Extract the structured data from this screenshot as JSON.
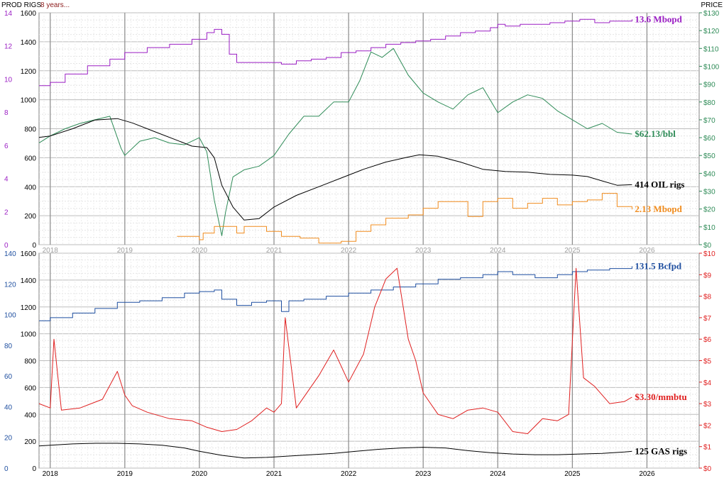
{
  "header": {
    "left_label": "PROD RIGS",
    "period_label": "8 years...",
    "right_label": "PRICE"
  },
  "colors": {
    "oil_production": "#9b1fc4",
    "oil_price": "#2e8b57",
    "oil_rigs": "#000000",
    "secondary_production": "#f08c1e",
    "gas_production": "#1f4fa0",
    "gas_price": "#e02020",
    "gas_rigs": "#000000",
    "grid_major": "#808080",
    "grid_minor": "#c8c8c8"
  },
  "chart_data": [
    {
      "type": "line",
      "x_axis": {
        "ticks": [
          "2018",
          "2019",
          "2020",
          "2021",
          "2022",
          "2023",
          "2024",
          "2025",
          "2026"
        ],
        "xlim": [
          2017.85,
          2026.7
        ]
      },
      "left_axis_rigs": {
        "ticks": [
          "0",
          "200",
          "400",
          "600",
          "800",
          "1000",
          "1200",
          "1400",
          "1600"
        ],
        "ylim": [
          0,
          1600
        ]
      },
      "left_axis_production": {
        "ticks": [
          "0",
          "2",
          "4",
          "6",
          "8",
          "10",
          "12",
          "14"
        ],
        "ylim": [
          0,
          14
        ]
      },
      "right_axis_price": {
        "ticks": [
          "$0",
          "$10",
          "$20",
          "$30",
          "$40",
          "$50",
          "$60",
          "$70",
          "$80",
          "$90",
          "$100",
          "$110",
          "$120",
          "$130"
        ],
        "ylim": [
          0,
          130
        ]
      },
      "series": [
        {
          "name": "13.6 Mbopd",
          "axis": "production",
          "color_key": "oil_production",
          "x": [
            2017.85,
            2018.0,
            2018.2,
            2018.5,
            2018.8,
            2019.0,
            2019.3,
            2019.6,
            2019.9,
            2020.1,
            2020.2,
            2020.3,
            2020.4,
            2020.5,
            2020.7,
            2020.9,
            2021.1,
            2021.3,
            2021.5,
            2021.7,
            2021.9,
            2022.1,
            2022.3,
            2022.5,
            2022.7,
            2022.9,
            2023.1,
            2023.3,
            2023.5,
            2023.7,
            2023.9,
            2024.0,
            2024.1,
            2024.3,
            2024.5,
            2024.7,
            2024.9,
            2025.1,
            2025.3,
            2025.5,
            2025.7,
            2025.8
          ],
          "y": [
            9.6,
            9.8,
            10.3,
            10.8,
            11.2,
            11.6,
            11.9,
            12.1,
            12.4,
            12.8,
            13.0,
            12.7,
            11.5,
            11.0,
            11.0,
            11.0,
            10.9,
            11.1,
            11.2,
            11.3,
            11.6,
            11.7,
            11.9,
            12.1,
            12.2,
            12.3,
            12.4,
            12.6,
            12.8,
            12.9,
            13.1,
            13.3,
            13.2,
            13.3,
            13.3,
            13.4,
            13.5,
            13.6,
            13.4,
            13.5,
            13.5,
            13.6
          ]
        },
        {
          "name": "$62.13/bbl",
          "axis": "price",
          "color_key": "oil_price",
          "x": [
            2017.85,
            2018.0,
            2018.2,
            2018.4,
            2018.6,
            2018.8,
            2018.95,
            2019.0,
            2019.2,
            2019.4,
            2019.6,
            2019.8,
            2020.0,
            2020.1,
            2020.2,
            2020.3,
            2020.35,
            2020.45,
            2020.6,
            2020.8,
            2021.0,
            2021.2,
            2021.4,
            2021.6,
            2021.8,
            2022.0,
            2022.15,
            2022.3,
            2022.45,
            2022.6,
            2022.8,
            2023.0,
            2023.2,
            2023.4,
            2023.6,
            2023.8,
            2024.0,
            2024.2,
            2024.4,
            2024.6,
            2024.8,
            2025.0,
            2025.2,
            2025.4,
            2025.6,
            2025.8
          ],
          "y": [
            57,
            61,
            65,
            68,
            70,
            72,
            54,
            50,
            58,
            60,
            57,
            56,
            60,
            52,
            25,
            5,
            18,
            38,
            42,
            44,
            50,
            62,
            72,
            72,
            80,
            80,
            92,
            108,
            105,
            110,
            95,
            85,
            80,
            76,
            84,
            88,
            74,
            80,
            84,
            82,
            75,
            70,
            65,
            68,
            63,
            62
          ]
        },
        {
          "name": "414 OIL rigs",
          "axis": "rigs",
          "color_key": "oil_rigs",
          "x": [
            2017.85,
            2018.0,
            2018.3,
            2018.6,
            2018.9,
            2019.1,
            2019.4,
            2019.7,
            2019.9,
            2020.1,
            2020.2,
            2020.3,
            2020.45,
            2020.6,
            2020.8,
            2021.0,
            2021.3,
            2021.6,
            2021.9,
            2022.2,
            2022.5,
            2022.8,
            2022.95,
            2023.2,
            2023.5,
            2023.8,
            2024.1,
            2024.4,
            2024.7,
            2025.0,
            2025.2,
            2025.4,
            2025.6,
            2025.8
          ],
          "y": [
            740,
            750,
            800,
            860,
            870,
            840,
            780,
            720,
            680,
            670,
            600,
            410,
            260,
            170,
            180,
            260,
            340,
            400,
            460,
            520,
            570,
            605,
            620,
            610,
            570,
            520,
            505,
            500,
            485,
            480,
            470,
            440,
            410,
            414
          ]
        },
        {
          "name": "2.13 Mbopd",
          "axis": "production",
          "color_key": "secondary_production",
          "x": [
            2019.7,
            2019.9,
            2020.0,
            2020.05,
            2020.2,
            2020.25,
            2020.5,
            2020.6,
            2020.9,
            2021.1,
            2021.35,
            2021.6,
            2021.9,
            2022.1,
            2022.3,
            2022.5,
            2022.8,
            2023.0,
            2023.2,
            2023.4,
            2023.6,
            2023.8,
            2024.0,
            2024.2,
            2024.4,
            2024.6,
            2024.8,
            2025.0,
            2025.2,
            2025.4,
            2025.6,
            2025.8
          ],
          "y": [
            0.5,
            0.5,
            0.3,
            0.7,
            1.1,
            1.1,
            0.7,
            1.1,
            0.8,
            0.5,
            0.4,
            0.1,
            0.2,
            0.8,
            1.2,
            1.6,
            1.8,
            2.2,
            2.6,
            2.6,
            1.7,
            2.6,
            2.8,
            2.2,
            2.5,
            2.8,
            2.4,
            2.6,
            2.7,
            3.1,
            2.3,
            2.13
          ]
        }
      ],
      "annotations": [
        "13.6 Mbopd",
        "$62.13/bbl",
        "414 OIL rigs",
        "2.13 Mbopd"
      ]
    },
    {
      "type": "line",
      "x_axis": {
        "ticks": [
          "2018",
          "2019",
          "2020",
          "2021",
          "2022",
          "2023",
          "2024",
          "2025",
          "2026"
        ],
        "xlim": [
          2017.85,
          2026.7
        ]
      },
      "left_axis_rigs": {
        "ticks": [
          "0",
          "200",
          "400",
          "600",
          "800",
          "1000",
          "1200",
          "1400",
          "1600"
        ],
        "ylim": [
          0,
          1600
        ]
      },
      "left_axis_production": {
        "ticks": [
          "0",
          "20",
          "40",
          "60",
          "80",
          "100",
          "120",
          "140"
        ],
        "ylim": [
          0,
          140
        ]
      },
      "right_axis_price": {
        "ticks": [
          "$0",
          "$1",
          "$2",
          "$3",
          "$4",
          "$5",
          "$6",
          "$7",
          "$8",
          "$9",
          "$10"
        ],
        "ylim": [
          0,
          10
        ]
      },
      "series": [
        {
          "name": "131.5 Bcfpd",
          "axis": "production",
          "color_key": "gas_production",
          "x": [
            2017.85,
            2018.0,
            2018.3,
            2018.6,
            2018.9,
            2019.2,
            2019.5,
            2019.8,
            2020.0,
            2020.2,
            2020.3,
            2020.5,
            2020.7,
            2020.9,
            2021.1,
            2021.2,
            2021.4,
            2021.7,
            2022.0,
            2022.3,
            2022.6,
            2022.9,
            2023.2,
            2023.5,
            2023.8,
            2024.0,
            2024.2,
            2024.5,
            2024.8,
            2025.0,
            2025.2,
            2025.5,
            2025.8
          ],
          "y": [
            96,
            98,
            101,
            104,
            108,
            109,
            111,
            114,
            115,
            116,
            110,
            106,
            108,
            109,
            102,
            109,
            110,
            112,
            114,
            116,
            118,
            120,
            123,
            124,
            126,
            128,
            126,
            124,
            126,
            128,
            129,
            130,
            131.5
          ]
        },
        {
          "name": "$3.30/mmbtu",
          "axis": "price",
          "color_key": "gas_price",
          "x": [
            2017.85,
            2018.0,
            2018.05,
            2018.15,
            2018.4,
            2018.7,
            2018.9,
            2019.0,
            2019.1,
            2019.3,
            2019.6,
            2019.9,
            2020.1,
            2020.3,
            2020.5,
            2020.7,
            2020.9,
            2021.0,
            2021.1,
            2021.15,
            2021.3,
            2021.6,
            2021.8,
            2022.0,
            2022.2,
            2022.35,
            2022.5,
            2022.65,
            2022.8,
            2022.9,
            2023.0,
            2023.2,
            2023.4,
            2023.6,
            2023.8,
            2024.0,
            2024.2,
            2024.4,
            2024.6,
            2024.8,
            2024.95,
            2025.05,
            2025.15,
            2025.3,
            2025.5,
            2025.7,
            2025.8
          ],
          "y": [
            3.0,
            2.8,
            6.0,
            2.7,
            2.8,
            3.2,
            4.5,
            3.4,
            2.9,
            2.6,
            2.3,
            2.2,
            1.9,
            1.7,
            1.8,
            2.2,
            2.8,
            2.6,
            3.0,
            7.0,
            2.8,
            4.3,
            5.5,
            4.0,
            5.3,
            7.5,
            8.8,
            9.3,
            6.0,
            5.0,
            3.5,
            2.5,
            2.3,
            2.7,
            2.8,
            2.6,
            1.7,
            1.6,
            2.3,
            2.2,
            2.5,
            9.3,
            4.2,
            3.8,
            3.0,
            3.1,
            3.3
          ]
        },
        {
          "name": "125 GAS rigs",
          "axis": "rigs",
          "color_key": "gas_rigs",
          "x": [
            2017.85,
            2018.0,
            2018.3,
            2018.6,
            2018.9,
            2019.2,
            2019.5,
            2019.8,
            2020.0,
            2020.3,
            2020.6,
            2020.9,
            2021.2,
            2021.5,
            2021.8,
            2022.1,
            2022.4,
            2022.7,
            2023.0,
            2023.3,
            2023.6,
            2023.9,
            2024.2,
            2024.5,
            2024.8,
            2025.1,
            2025.4,
            2025.7,
            2025.8
          ],
          "y": [
            165,
            170,
            180,
            185,
            185,
            180,
            170,
            150,
            125,
            95,
            75,
            80,
            90,
            100,
            110,
            125,
            140,
            150,
            155,
            150,
            130,
            115,
            105,
            100,
            100,
            105,
            110,
            120,
            125
          ]
        }
      ],
      "annotations": [
        "131.5 Bcfpd",
        "$3.30/mmbtu",
        "125 GAS rigs"
      ]
    }
  ]
}
